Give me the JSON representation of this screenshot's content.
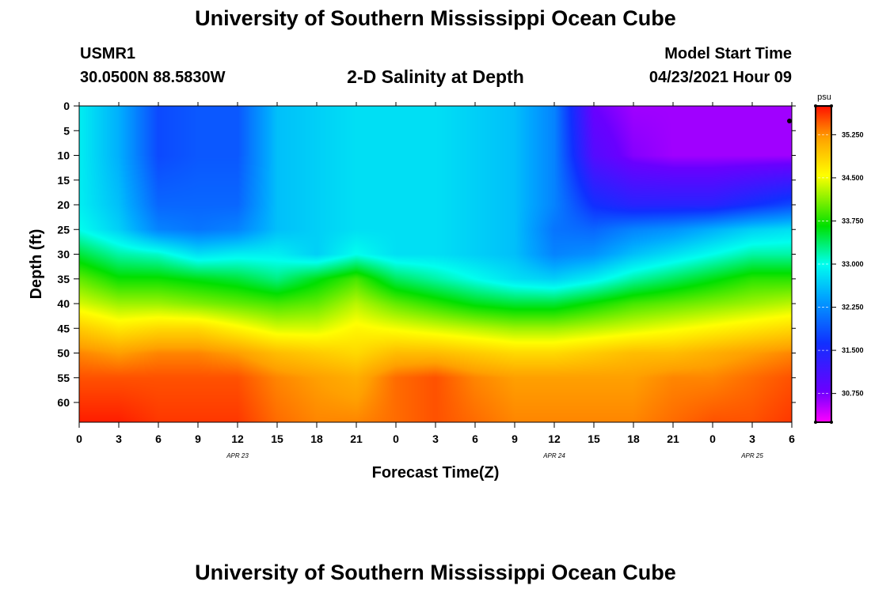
{
  "header": {
    "title": "University of Southern Mississippi Ocean Cube",
    "station_id": "USMR1",
    "coordinates": "30.0500N  88.5830W",
    "chart_title": "2-D Salinity at Depth",
    "model_start_label": "Model Start Time",
    "model_start_value": "04/23/2021 Hour 09"
  },
  "footer": {
    "title": "University of Southern Mississippi Ocean Cube"
  },
  "colors": {
    "magenta": "#ff00ff",
    "purple": "#6a00ff",
    "blue": "#1030ff",
    "sky": "#00a8ff",
    "cyan": "#00ffee",
    "green": "#00e000",
    "yellow": "#ffff00",
    "orange": "#ffa000",
    "red": "#ff1000"
  },
  "chart_data": {
    "type": "heatmap",
    "title": "2-D Salinity at Depth",
    "xlabel": "Forecast Time(Z)",
    "ylabel": "Depth (ft)",
    "xlim": [
      0,
      54
    ],
    "ylim": [
      0,
      64
    ],
    "x_tick_values": [
      0,
      3,
      6,
      9,
      12,
      15,
      18,
      21,
      24,
      27,
      30,
      33,
      36,
      39,
      42,
      45,
      48,
      51,
      54
    ],
    "x_tick_labels": [
      "0",
      "3",
      "6",
      "9",
      "12",
      "15",
      "18",
      "21",
      "0",
      "3",
      "6",
      "9",
      "12",
      "15",
      "18",
      "21",
      "0",
      "3",
      "6"
    ],
    "date_labels": [
      {
        "x": 12,
        "text": "APR  23"
      },
      {
        "x": 36,
        "text": "APR  24"
      },
      {
        "x": 51,
        "text": "APR  25"
      }
    ],
    "y_tick_values": [
      0,
      5,
      10,
      15,
      20,
      25,
      30,
      35,
      40,
      45,
      50,
      55,
      60
    ],
    "y_tick_labels": [
      "0",
      "5",
      "10",
      "15",
      "20",
      "25",
      "30",
      "35",
      "40",
      "45",
      "50",
      "55",
      "60"
    ],
    "colorbar": {
      "unit": "psu",
      "range": [
        30.25,
        35.75
      ],
      "tick_values": [
        35.25,
        34.5,
        33.75,
        33.0,
        32.25,
        31.5,
        30.75
      ],
      "tick_labels": [
        "35.250",
        "34.500",
        "33.750",
        "33.000",
        "32.250",
        "31.500",
        "30.750"
      ]
    },
    "time_hours": [
      0,
      3,
      6,
      9,
      12,
      15,
      18,
      21,
      24,
      27,
      30,
      33,
      36,
      39,
      42,
      45,
      48,
      51,
      54
    ],
    "depth_ft": [
      0,
      10,
      20,
      25,
      30,
      35,
      40,
      45,
      50,
      55,
      64
    ],
    "salinity_psu": [
      [
        32.9,
        32.5,
        31.8,
        31.9,
        31.9,
        32.6,
        32.7,
        32.8,
        32.8,
        32.8,
        32.7,
        32.6,
        32.2,
        30.8,
        30.6,
        30.6,
        30.6,
        30.6,
        30.6
      ],
      [
        32.9,
        32.5,
        31.8,
        31.9,
        31.9,
        32.6,
        32.7,
        32.8,
        32.8,
        32.8,
        32.7,
        32.6,
        32.2,
        31.0,
        30.7,
        30.6,
        30.6,
        30.6,
        30.6
      ],
      [
        32.9,
        32.6,
        32.0,
        32.0,
        32.0,
        32.6,
        32.7,
        32.8,
        32.8,
        32.8,
        32.7,
        32.6,
        32.2,
        31.6,
        31.4,
        31.4,
        31.4,
        31.6,
        31.8
      ],
      [
        33.0,
        32.7,
        32.2,
        32.1,
        32.2,
        32.6,
        32.7,
        32.8,
        32.8,
        32.8,
        32.7,
        32.6,
        32.1,
        32.0,
        32.2,
        32.3,
        32.5,
        32.7,
        32.8
      ],
      [
        33.5,
        33.2,
        33.1,
        32.8,
        32.9,
        32.9,
        32.7,
        33.0,
        32.8,
        32.8,
        32.7,
        32.6,
        32.2,
        32.3,
        32.6,
        32.8,
        33.0,
        33.2,
        33.2
      ],
      [
        34.0,
        33.7,
        33.7,
        33.6,
        33.5,
        33.3,
        33.6,
        33.9,
        33.4,
        33.2,
        33.0,
        32.8,
        32.7,
        32.9,
        33.2,
        33.4,
        33.6,
        33.8,
        33.8
      ],
      [
        34.4,
        34.2,
        34.2,
        34.1,
        34.0,
        33.9,
        34.0,
        34.3,
        34.0,
        33.8,
        33.6,
        33.5,
        33.5,
        33.7,
        33.9,
        34.0,
        34.1,
        34.2,
        34.3
      ],
      [
        34.9,
        34.7,
        34.8,
        34.8,
        34.6,
        34.4,
        34.4,
        34.6,
        34.5,
        34.4,
        34.3,
        34.2,
        34.2,
        34.3,
        34.4,
        34.5,
        34.6,
        34.7,
        34.8
      ],
      [
        35.3,
        35.2,
        35.3,
        35.3,
        35.2,
        35.0,
        34.9,
        34.8,
        35.0,
        35.0,
        34.9,
        34.8,
        34.8,
        34.9,
        35.0,
        35.0,
        35.1,
        35.2,
        35.3
      ],
      [
        35.5,
        35.5,
        35.5,
        35.5,
        35.5,
        35.3,
        35.2,
        35.1,
        35.4,
        35.5,
        35.3,
        35.2,
        35.2,
        35.2,
        35.2,
        35.3,
        35.3,
        35.4,
        35.5
      ],
      [
        35.7,
        35.7,
        35.6,
        35.6,
        35.6,
        35.4,
        35.3,
        35.3,
        35.4,
        35.5,
        35.4,
        35.3,
        35.3,
        35.3,
        35.3,
        35.4,
        35.5,
        35.5,
        35.6
      ]
    ]
  }
}
